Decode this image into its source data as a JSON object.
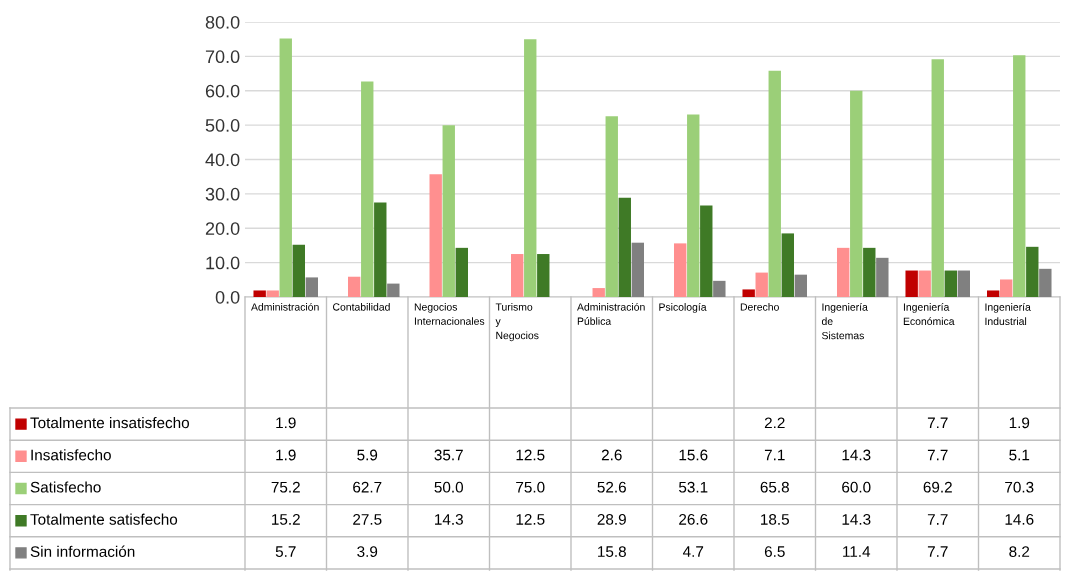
{
  "chart_data": {
    "type": "bar",
    "categories": [
      "Administración",
      "Contabilidad",
      "Negocios Internacionales",
      "Turismo y Negocios",
      "Administración Pública",
      "Psicología",
      "Derecho",
      "Ingeniería de Sistemas",
      "Ingeniería Económica",
      "Ingeniería Industrial"
    ],
    "series": [
      {
        "name": "Totalmente insatisfecho",
        "color": "#c00000",
        "values": [
          1.9,
          null,
          null,
          null,
          null,
          null,
          2.2,
          null,
          7.7,
          1.9
        ],
        "value_labels": [
          "1.9",
          null,
          null,
          null,
          null,
          null,
          "2.2",
          null,
          "7.7",
          "1.9"
        ]
      },
      {
        "name": "Insatisfecho",
        "color": "#ff8f8f",
        "values": [
          1.9,
          5.9,
          35.7,
          12.5,
          2.6,
          15.6,
          7.1,
          14.3,
          7.7,
          5.1
        ],
        "value_labels": [
          "1.9",
          "5.9",
          "35.7",
          "12.5",
          "2.6",
          "15.6",
          "7.1",
          "14.3",
          "7.7",
          "5.1"
        ]
      },
      {
        "name": "Satisfecho",
        "color": "#9bcf78",
        "values": [
          75.2,
          62.7,
          50.0,
          75.0,
          52.6,
          53.1,
          65.8,
          60.0,
          69.2,
          70.3
        ],
        "value_labels": [
          "75.2",
          "62.7",
          "50.0",
          "75.0",
          "52.6",
          "53.1",
          "65.8",
          "60.0",
          "69.2",
          "70.3"
        ]
      },
      {
        "name": "Totalmente satisfecho",
        "color": "#3f7a26",
        "values": [
          15.2,
          27.5,
          14.3,
          12.5,
          28.9,
          26.6,
          18.5,
          14.3,
          7.7,
          14.6
        ],
        "value_labels": [
          "15.2",
          "27.5",
          "14.3",
          "12.5",
          "28.9",
          "26.6",
          "18.5",
          "14.3",
          "7.7",
          "14.6"
        ]
      },
      {
        "name": "Sin información",
        "color": "#808080",
        "values": [
          5.7,
          3.9,
          null,
          null,
          15.8,
          4.7,
          6.5,
          11.4,
          7.7,
          8.2
        ],
        "value_labels": [
          "5.7",
          "3.9",
          null,
          null,
          "15.8",
          "4.7",
          "6.5",
          "11.4",
          "7.7",
          "8.2"
        ]
      }
    ],
    "ylim": [
      0,
      80
    ],
    "yticks": [
      {
        "value": 0,
        "label": "0.0"
      },
      {
        "value": 10,
        "label": "10.0"
      },
      {
        "value": 20,
        "label": "20.0"
      },
      {
        "value": 30,
        "label": "30.0"
      },
      {
        "value": 40,
        "label": "40.0"
      },
      {
        "value": 50,
        "label": "50.0"
      },
      {
        "value": 60,
        "label": "60.0"
      },
      {
        "value": 70,
        "label": "70.0"
      },
      {
        "value": 80,
        "label": "80.0"
      }
    ],
    "grid": "y",
    "legend": "bottom left"
  }
}
